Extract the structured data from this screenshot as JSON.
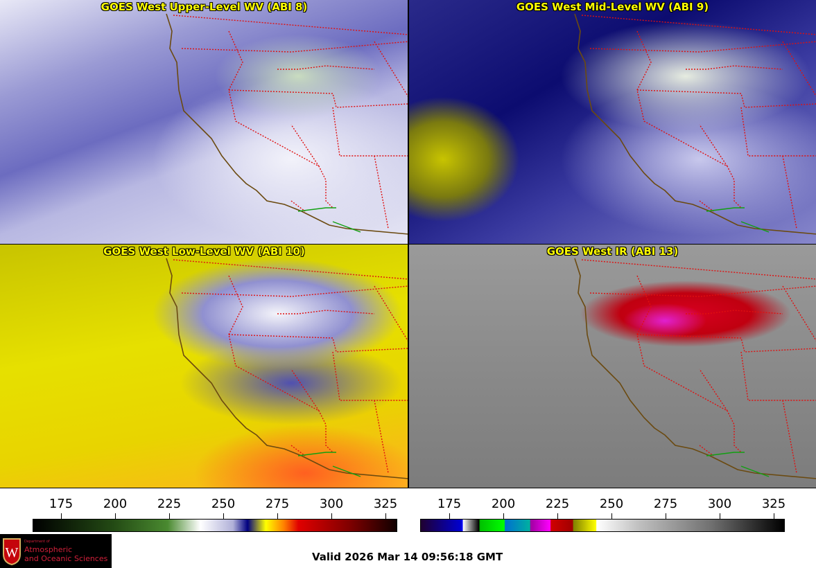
{
  "panels": [
    {
      "title": "GOES West Upper-Level WV (ABI 8)"
    },
    {
      "title": "GOES West Mid-Level WV (ABI 9)"
    },
    {
      "title": "GOES West Low-Level WV (ABI 10)"
    },
    {
      "title": "GOES West IR (ABI 13)"
    }
  ],
  "colorbars": [
    {
      "name": "water-vapor",
      "ticks": [
        "175",
        "200",
        "225",
        "250",
        "275",
        "300",
        "325"
      ]
    },
    {
      "name": "infrared",
      "ticks": [
        "175",
        "200",
        "225",
        "250",
        "275",
        "300",
        "325"
      ]
    }
  ],
  "logo": {
    "line1": "Department of",
    "line2": "Atmospheric",
    "line3": "and Oceanic Sciences",
    "crest_letter": "W"
  },
  "valid_time": "Valid 2026 Mar 14 09:56:18 GMT",
  "colors": {
    "title": "#ffff00",
    "coastline": "#6b4a10",
    "state_borders": "#e01010",
    "intl_border": "#10a010"
  }
}
